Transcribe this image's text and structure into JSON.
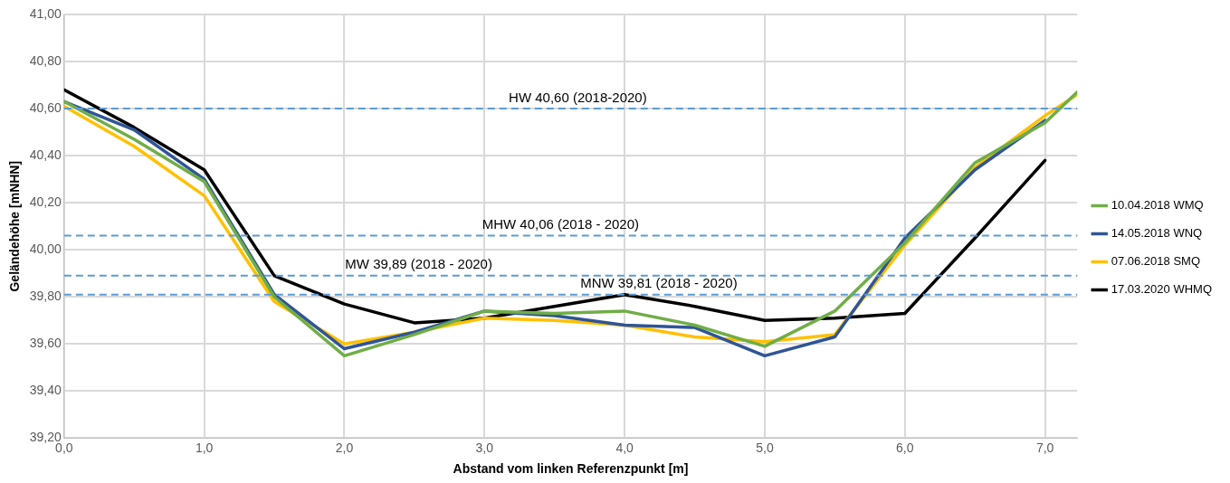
{
  "chart_data": {
    "type": "line",
    "xlabel": "Abstand vom linken Referenzpunkt [m]",
    "ylabel": "Geländehöhe [mNHN]",
    "x": [
      0,
      0.5,
      1,
      1.5,
      2,
      2.5,
      3,
      3.5,
      4,
      4.5,
      5,
      5.5,
      6,
      6.5,
      7,
      7.23
    ],
    "series": [
      {
        "name": "10.04.2018 WMQ",
        "color": "#70ad47",
        "values": [
          40.63,
          40.47,
          40.29,
          39.8,
          39.55,
          39.64,
          39.74,
          39.73,
          39.74,
          39.68,
          39.59,
          39.74,
          40.03,
          40.37,
          40.54,
          40.67
        ]
      },
      {
        "name": "14.05.2018 WNQ",
        "color": "#2f5597",
        "x": [
          0,
          0.5,
          1,
          1.5,
          2,
          2.5,
          3,
          3.5,
          4,
          4.5,
          5,
          5.5,
          6,
          6.5,
          7
        ],
        "values": [
          40.63,
          40.51,
          40.3,
          39.81,
          39.58,
          39.65,
          39.74,
          39.72,
          39.68,
          39.67,
          39.55,
          39.63,
          40.05,
          40.34,
          40.55
        ]
      },
      {
        "name": "07.06.2018 SMQ",
        "color": "#ffc000",
        "values": [
          40.61,
          40.44,
          40.23,
          39.78,
          39.6,
          39.65,
          39.71,
          39.7,
          39.68,
          39.63,
          39.61,
          39.64,
          40.02,
          40.35,
          40.57,
          40.66
        ]
      },
      {
        "name": "17.03.2020 WHMQ",
        "color": "#000000",
        "x": [
          0,
          0.5,
          1,
          1.5,
          2,
          2.5,
          3,
          3.5,
          4,
          4.5,
          5,
          5.5,
          6,
          6.5,
          7
        ],
        "values": [
          40.68,
          40.52,
          40.34,
          39.89,
          39.77,
          39.69,
          39.71,
          39.76,
          39.81,
          39.76,
          39.7,
          39.71,
          39.73,
          40.05,
          40.38
        ]
      }
    ],
    "xlim": [
      0,
      7.23
    ],
    "xticks": [
      {
        "value": 0,
        "label": "0,0"
      },
      {
        "value": 1,
        "label": "1,0"
      },
      {
        "value": 2,
        "label": "2,0"
      },
      {
        "value": 3,
        "label": "3,0"
      },
      {
        "value": 4,
        "label": "4,0"
      },
      {
        "value": 5,
        "label": "5,0"
      },
      {
        "value": 6,
        "label": "6,0"
      },
      {
        "value": 7,
        "label": "7,0"
      }
    ],
    "ylim": [
      39.2,
      41.0
    ],
    "yticks": [
      {
        "value": 39.2,
        "label": "39,20"
      },
      {
        "value": 39.4,
        "label": "39,40"
      },
      {
        "value": 39.6,
        "label": "39,60"
      },
      {
        "value": 39.8,
        "label": "39,80"
      },
      {
        "value": 40.0,
        "label": "40,00"
      },
      {
        "value": 40.2,
        "label": "40,20"
      },
      {
        "value": 40.4,
        "label": "40,40"
      },
      {
        "value": 40.6,
        "label": "40,60"
      },
      {
        "value": 40.8,
        "label": "40,80"
      },
      {
        "value": 41.0,
        "label": "41,00"
      }
    ],
    "ref_lines": [
      {
        "axis": "y",
        "value": 40.6,
        "label": "HW 40,60 (2018-2020)",
        "color": "#5b9bd5",
        "line_style": "dashed"
      },
      {
        "axis": "y",
        "value": 40.06,
        "label": "MHW 40,06 (2018 - 2020)",
        "color": "#5b9bd5",
        "line_style": "dashed"
      },
      {
        "axis": "y",
        "value": 39.89,
        "label": "MW 39,89 (2018 - 2020)",
        "color": "#5b9bd5",
        "line_style": "dashed"
      },
      {
        "axis": "y",
        "value": 39.81,
        "label": "MNW 39,81 (2018 - 2020)",
        "color": "#5b9bd5",
        "line_style": "dashed"
      }
    ],
    "grid": true,
    "legend": "right",
    "marker": "none",
    "line_style": "solid"
  }
}
